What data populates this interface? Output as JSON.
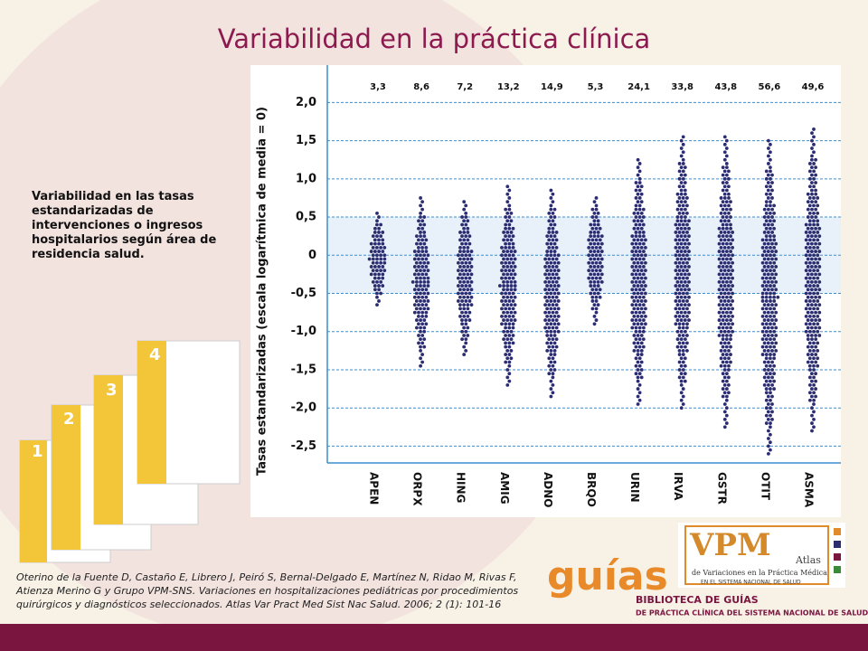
{
  "header": {
    "title": "Variabilidad en la práctica clínica"
  },
  "description": "Variabilidad en las tasas estandarizadas de intervenciones o ingresos hospitalarios según área de residencia salud.",
  "thumbnails": [
    "1",
    "2",
    "3",
    "4"
  ],
  "chart_data": {
    "type": "strip",
    "ylabel": "Tasas estandarizadas (escala logarítmica de media = 0)",
    "categories": [
      "APEN",
      "ORPX",
      "HING",
      "AMIG",
      "ADNO",
      "BRQO",
      "URIN",
      "IRVA",
      "GSTR",
      "OTIT",
      "ASMA"
    ],
    "values": [
      3.3,
      8.6,
      7.2,
      13.2,
      14.9,
      5.3,
      24.1,
      33.8,
      43.8,
      56.6,
      49.6
    ],
    "value_labels": [
      "3,3",
      "8,6",
      "7,2",
      "13,2",
      "14,9",
      "5,3",
      "24,1",
      "33,8",
      "43,8",
      "56,6",
      "49,6"
    ],
    "ranges": [
      [
        -0.65,
        0.55
      ],
      [
        -1.45,
        0.75
      ],
      [
        -1.3,
        0.72
      ],
      [
        -1.7,
        0.9
      ],
      [
        -1.85,
        0.88
      ],
      [
        -0.9,
        0.78
      ],
      [
        -1.95,
        1.28
      ],
      [
        -2.0,
        1.55
      ],
      [
        -2.25,
        1.57
      ],
      [
        -2.6,
        1.5
      ],
      [
        -2.3,
        1.65
      ]
    ],
    "color": "#2b2d6e",
    "ylim": [
      -2.72,
      2.49
    ],
    "yticks": [
      {
        "value": 2,
        "label": "2,0"
      },
      {
        "value": 1.5,
        "label": "1,5"
      },
      {
        "value": 1,
        "label": "1,0"
      },
      {
        "value": 0.5,
        "label": "0,5"
      },
      0,
      {
        "value": -0.5,
        "label": "-0,5"
      },
      {
        "value": -1,
        "label": "-1,0"
      },
      {
        "value": -1.5,
        "label": "-1,5"
      },
      {
        "value": -2,
        "label": "-2,0"
      },
      {
        "value": -2.5,
        "label": "-2,5"
      }
    ],
    "band": [
      -0.5,
      0.5
    ],
    "grid": true
  },
  "citation": "Oterino de la Fuente D, Castaño E, Librero J, Peiró S, Bernal-Delgado E, Martínez N, Ridao M, Rivas F, Atienza Merino G y Grupo VPM-SNS. Variaciones en hospitalizaciones pediátricas por procedimientos quirúrgicos y diagnósticos seleccionados. Atlas Var Pract Med Sist Nac Salud. 2006; 2 (1): 101-16",
  "guias_logo": {
    "word": "guías",
    "line1": "BIBLIOTECA DE GUÍAS",
    "line2": "DE PRÁCTICA CLÍNICA DEL SISTEMA NACIONAL DE SALUD"
  },
  "vpm_logo": {
    "word": "VPM",
    "atlas": "Atlas",
    "line1": "de Variaciones en la Práctica Médica",
    "line2": "EN EL SISTEMA NACIONAL DE SALUD"
  }
}
